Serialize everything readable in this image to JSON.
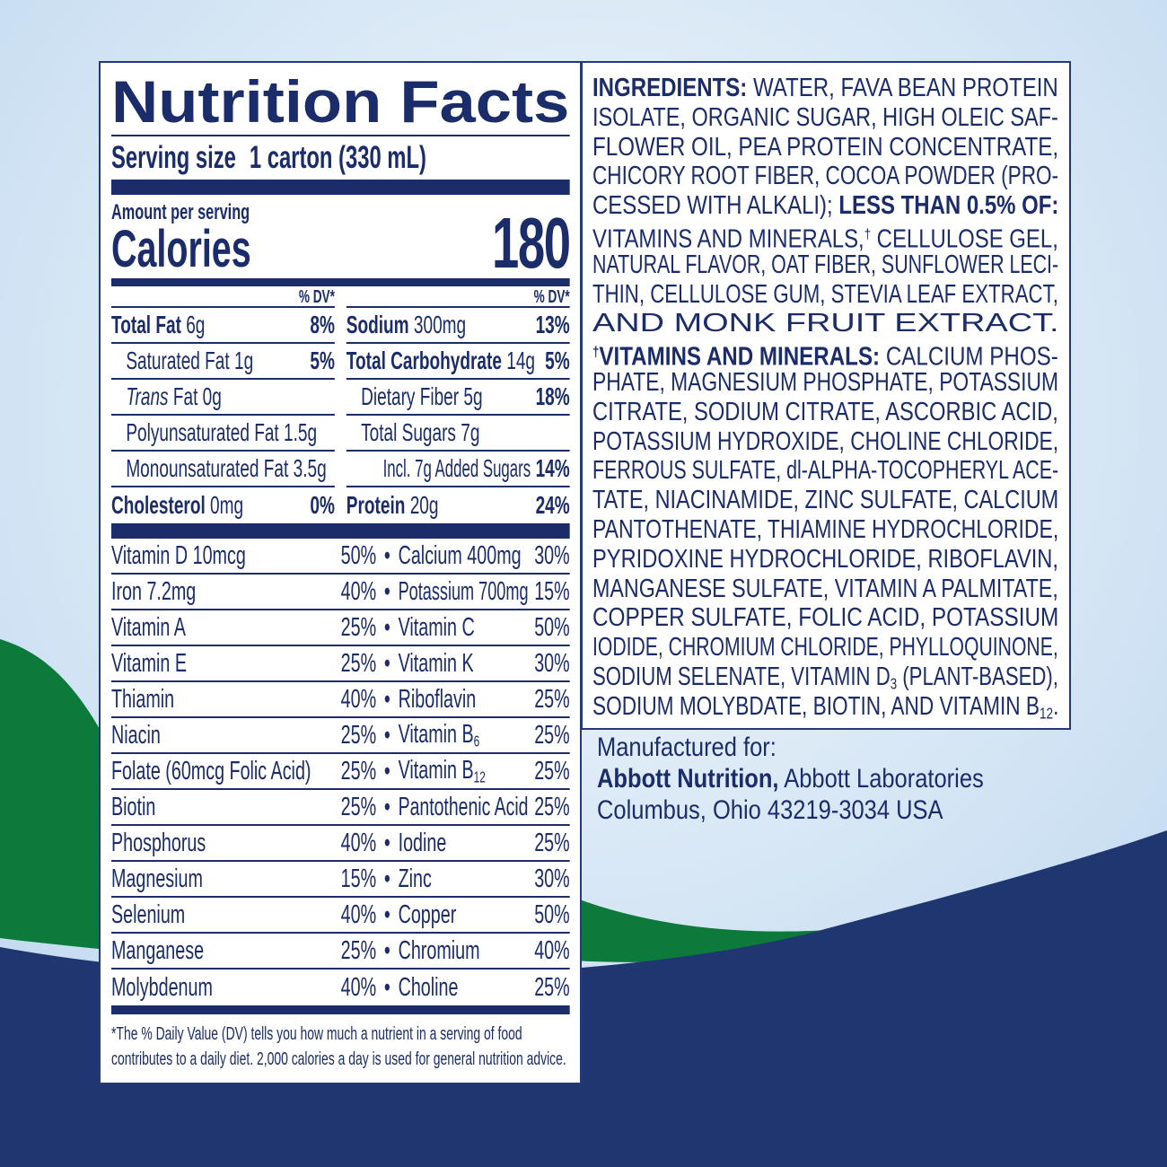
{
  "colors": {
    "navy": "#1f3670",
    "green": "#0b7a3b",
    "sky": "#d6e7f5",
    "text": "#1b2c6a"
  },
  "nutrition": {
    "title": "Nutrition Facts",
    "serving_label": "Serving size",
    "serving_value": "1 carton (330 mL)",
    "amount_per_serving": "Amount per serving",
    "calories_label": "Calories",
    "calories_value": "180",
    "dv_header": "% DV*",
    "left": [
      {
        "name": "Total Fat",
        "amount": "6g",
        "dv": "8%",
        "bold": true,
        "indent": 0
      },
      {
        "name": "Saturated Fat",
        "amount": "1g",
        "dv": "5%",
        "bold": false,
        "indent": 1
      },
      {
        "name": "Trans",
        "name_rest": "Fat",
        "amount": "0g",
        "dv": "",
        "bold": false,
        "indent": 1,
        "italic": true
      },
      {
        "name": "Polyunsaturated Fat",
        "amount": "1.5g",
        "dv": "",
        "bold": false,
        "indent": 1
      },
      {
        "name": "Monounsaturated Fat",
        "amount": "3.5g",
        "dv": "",
        "bold": false,
        "indent": 1
      },
      {
        "name": "Cholesterol",
        "amount": "0mg",
        "dv": "0%",
        "bold": true,
        "indent": 0
      }
    ],
    "right": [
      {
        "name": "Sodium",
        "amount": "300mg",
        "dv": "13%",
        "bold": true,
        "indent": 0
      },
      {
        "name": "Total Carbohydrate",
        "amount": "14g",
        "dv": "5%",
        "bold": true,
        "indent": 0
      },
      {
        "name": "Dietary Fiber",
        "amount": "5g",
        "dv": "18%",
        "bold": false,
        "indent": 1
      },
      {
        "name": "Total Sugars",
        "amount": "7g",
        "dv": "",
        "bold": false,
        "indent": 1
      },
      {
        "name": "Incl. 7g Added Sugars",
        "amount": "",
        "dv": "14%",
        "bold": false,
        "indent": 2
      },
      {
        "name": "Protein",
        "amount": "20g",
        "dv": "24%",
        "bold": true,
        "indent": 0
      }
    ],
    "vitamins": [
      {
        "n1": "Vitamin D 10mcg",
        "p1": "50%",
        "n2": "Calcium 400mg",
        "p2": "30%"
      },
      {
        "n1": "Iron 7.2mg",
        "p1": "40%",
        "n2": "Potassium 700mg",
        "p2": "15%"
      },
      {
        "n1": "Vitamin A",
        "p1": "25%",
        "n2": "Vitamin C",
        "p2": "50%"
      },
      {
        "n1": "Vitamin E",
        "p1": "25%",
        "n2": "Vitamin K",
        "p2": "30%"
      },
      {
        "n1": "Thiamin",
        "p1": "40%",
        "n2": "Riboflavin",
        "p2": "25%"
      },
      {
        "n1": "Niacin",
        "p1": "25%",
        "n2": "Vitamin B",
        "n2sub": "6",
        "p2": "25%"
      },
      {
        "n1": "Folate (60mcg Folic Acid)",
        "p1": "25%",
        "n2": "Vitamin B",
        "n2sub": "12",
        "p2": "25%"
      },
      {
        "n1": "Biotin",
        "p1": "25%",
        "n2": "Pantothenic Acid",
        "p2": "25%"
      },
      {
        "n1": "Phosphorus",
        "p1": "40%",
        "n2": "Iodine",
        "p2": "25%"
      },
      {
        "n1": "Magnesium",
        "p1": "15%",
        "n2": "Zinc",
        "p2": "30%"
      },
      {
        "n1": "Selenium",
        "p1": "40%",
        "n2": "Copper",
        "p2": "50%"
      },
      {
        "n1": "Manganese",
        "p1": "25%",
        "n2": "Chromium",
        "p2": "40%"
      },
      {
        "n1": "Molybdenum",
        "p1": "40%",
        "n2": "Choline",
        "p2": "25%"
      }
    ],
    "bullet": "•",
    "footnote": "*The % Daily Value (DV) tells you how much a nutrient in a serving of food contributes to a daily diet. 2,000 calories a day is used for general nutrition advice."
  },
  "ingredients": {
    "lines": [
      [
        {
          "t": "INGREDIENTS:",
          "b": true
        },
        {
          "t": " WATER, FAVA BEAN PROTEIN"
        }
      ],
      [
        {
          "t": "ISOLATE, ORGANIC SUGAR, HIGH OLEIC SAF-"
        }
      ],
      [
        {
          "t": "FLOWER OIL, PEA PROTEIN CONCENTRATE,"
        }
      ],
      [
        {
          "t": "CHICORY ROOT FIBER, COCOA POWDER (PRO-"
        }
      ],
      [
        {
          "t": "CESSED WITH ALKALI); "
        },
        {
          "t": "LESS THAN 0.5% OF:",
          "b": true
        }
      ],
      [
        {
          "t": "VITAMINS AND MINERALS,"
        },
        {
          "t": "†",
          "sup": true
        },
        {
          "t": " CELLULOSE GEL,"
        }
      ],
      [
        {
          "t": "NATURAL FLAVOR, OAT FIBER, SUNFLOWER LECI-"
        }
      ],
      [
        {
          "t": "THIN, CELLULOSE GUM, STEVIA LEAF EXTRACT,"
        }
      ],
      [
        {
          "t": "AND MONK FRUIT EXTRACT."
        }
      ],
      [
        {
          "t": "†",
          "sup": true,
          "b": true
        },
        {
          "t": "VITAMINS AND MINERALS:",
          "b": true
        },
        {
          "t": " CALCIUM PHOS-"
        }
      ],
      [
        {
          "t": "PHATE, MAGNESIUM PHOSPHATE, POTASSIUM"
        }
      ],
      [
        {
          "t": "CITRATE, SODIUM CITRATE, ASCORBIC ACID,"
        }
      ],
      [
        {
          "t": "POTASSIUM HYDROXIDE, CHOLINE CHLORIDE,"
        }
      ],
      [
        {
          "t": "FERROUS SULFATE, dl-ALPHA-TOCOPHERYL ACE-"
        }
      ],
      [
        {
          "t": "TATE, NIACINAMIDE, ZINC SULFATE, CALCIUM"
        }
      ],
      [
        {
          "t": "PANTOTHENATE, THIAMINE HYDROCHLORIDE,"
        }
      ],
      [
        {
          "t": "PYRIDOXINE HYDROCHLORIDE, RIBOFLAVIN,"
        }
      ],
      [
        {
          "t": "MANGANESE SULFATE, VITAMIN A PALMITATE,"
        }
      ],
      [
        {
          "t": "COPPER SULFATE, FOLIC ACID, POTASSIUM"
        }
      ],
      [
        {
          "t": "IODIDE, CHROMIUM CHLORIDE, PHYLLOQUINONE,"
        }
      ],
      [
        {
          "t": "SODIUM SELENATE, VITAMIN D"
        },
        {
          "t": "3",
          "sub": true
        },
        {
          "t": " (PLANT-BASED),"
        }
      ],
      [
        {
          "t": "SODIUM MOLYBDATE, BIOTIN, AND VITAMIN B"
        },
        {
          "t": "12",
          "sub": true
        },
        {
          "t": "."
        }
      ]
    ]
  },
  "manufacturer": {
    "label": "Manufactured for:",
    "company_bold": "Abbott Nutrition,",
    "company_rest": " Abbott Laboratories",
    "address": "Columbus, Ohio 43219-3034 USA"
  }
}
